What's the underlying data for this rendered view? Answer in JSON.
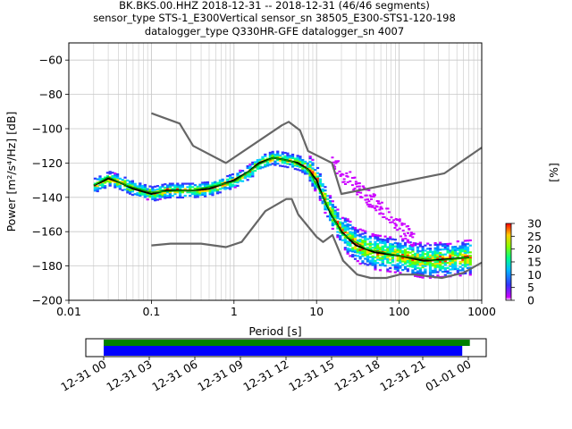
{
  "header": {
    "line1": "BK.BKS.00.HHZ   2018-12-31 -- 2018-12-31  (46/46 segments)",
    "line2": "sensor_type STS-1_E300Vertical sensor_sn 38505_E300-STS1-120-198",
    "line3": "datalogger_type Q330HR-GFE datalogger_sn 4007"
  },
  "colorbar": {
    "label": "[%]",
    "ticks": [
      "30",
      "25",
      "20",
      "15",
      "10",
      "5",
      "0"
    ],
    "range": [
      0,
      30
    ]
  },
  "chart_data": [
    {
      "type": "line",
      "title": "",
      "xlabel": "Period [s]",
      "ylabel": "Power [m²/s⁴/Hz] [dB]",
      "xscale": "log",
      "xlim": [
        0.01,
        1000
      ],
      "ylim": [
        -200,
        -50
      ],
      "xticks": [
        {
          "v": 0.01,
          "label": "0.01"
        },
        {
          "v": 0.1,
          "label": "0.1"
        },
        {
          "v": 1,
          "label": "1"
        },
        {
          "v": 10,
          "label": "10"
        },
        {
          "v": 100,
          "label": "100"
        },
        {
          "v": 1000,
          "label": "1000"
        }
      ],
      "yticks": [
        -60,
        -80,
        -100,
        -120,
        -140,
        -160,
        -180,
        -200
      ],
      "grid": true,
      "series": [
        {
          "role": "new-high-noise-model",
          "color": "#666666",
          "points": [
            [
              0.1,
              -91
            ],
            [
              0.22,
              -97
            ],
            [
              0.32,
              -110
            ],
            [
              0.8,
              -120
            ],
            [
              3.8,
              -98
            ],
            [
              4.6,
              -96
            ],
            [
              6.3,
              -101
            ],
            [
              7.9,
              -113
            ],
            [
              15.4,
              -120
            ],
            [
              20,
              -138
            ],
            [
              354,
              -126
            ],
            [
              1000,
              -111
            ]
          ]
        },
        {
          "role": "new-low-noise-model",
          "color": "#666666",
          "points": [
            [
              0.1,
              -168
            ],
            [
              0.17,
              -167
            ],
            [
              0.4,
              -167
            ],
            [
              0.8,
              -169
            ],
            [
              1.24,
              -166
            ],
            [
              2.4,
              -148
            ],
            [
              4.3,
              -141
            ],
            [
              5,
              -141
            ],
            [
              6,
              -150
            ],
            [
              10,
              -163
            ],
            [
              12,
              -166
            ],
            [
              15.6,
              -162
            ],
            [
              21,
              -177
            ],
            [
              31,
              -185
            ],
            [
              45,
              -187
            ],
            [
              70,
              -187
            ],
            [
              101,
              -185
            ],
            [
              154,
              -185
            ],
            [
              328,
              -187
            ],
            [
              600,
              -184
            ],
            [
              1000,
              -178
            ]
          ]
        },
        {
          "role": "mean",
          "color": "#000000",
          "points": [
            [
              0.02,
              -133
            ],
            [
              0.025,
              -131
            ],
            [
              0.03,
              -129
            ],
            [
              0.04,
              -131
            ],
            [
              0.06,
              -135
            ],
            [
              0.1,
              -138
            ],
            [
              0.15,
              -136
            ],
            [
              0.3,
              -136
            ],
            [
              0.5,
              -135
            ],
            [
              1,
              -130
            ],
            [
              1.5,
              -125
            ],
            [
              2,
              -120
            ],
            [
              3,
              -117
            ],
            [
              4,
              -118
            ],
            [
              6,
              -120
            ],
            [
              8,
              -124
            ],
            [
              10,
              -130
            ],
            [
              12,
              -140
            ],
            [
              15,
              -150
            ],
            [
              20,
              -160
            ],
            [
              30,
              -168
            ],
            [
              50,
              -172
            ],
            [
              100,
              -174
            ],
            [
              200,
              -177
            ],
            [
              400,
              -176
            ],
            [
              700,
              -175
            ]
          ]
        },
        {
          "role": "mode",
          "color": "#00aa00",
          "points": [
            [
              0.02,
              -133
            ],
            [
              0.03,
              -128
            ],
            [
              0.05,
              -133
            ],
            [
              0.1,
              -137
            ],
            [
              0.3,
              -136
            ],
            [
              1,
              -131
            ],
            [
              2,
              -121
            ],
            [
              3,
              -117
            ],
            [
              5,
              -119
            ],
            [
              8,
              -124
            ],
            [
              12,
              -140
            ],
            [
              20,
              -161
            ],
            [
              40,
              -170
            ],
            [
              100,
              -174
            ],
            [
              300,
              -177
            ],
            [
              700,
              -175
            ]
          ]
        }
      ]
    },
    {
      "type": "timeline",
      "xticks": [
        "12-31 00",
        "12-31 03",
        "12-31 06",
        "12-31 09",
        "12-31 12",
        "12-31 15",
        "12-31 18",
        "12-31 21",
        "01-01 00"
      ],
      "bars": [
        {
          "role": "data-coverage",
          "color": "#008000",
          "start_hour": 0,
          "end_hour": 24.1
        },
        {
          "role": "psd-coverage",
          "color": "#0000ff",
          "start_hour": 0,
          "end_hour": 23.6
        }
      ]
    }
  ]
}
